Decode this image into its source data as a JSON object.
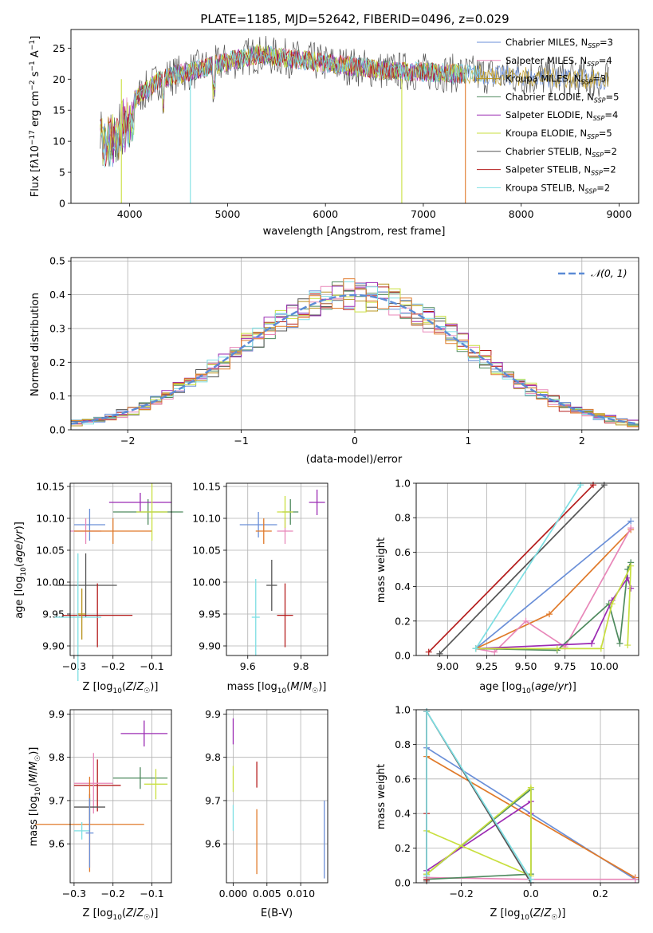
{
  "title": "PLATE=1185, MJD=52642, FIBERID=0496, z=0.029",
  "colors": [
    "#6a8fd8",
    "#e887b9",
    "#b8941e",
    "#4e8a5e",
    "#9b2bb3",
    "#c9df3f",
    "#555555",
    "#b51d1d",
    "#7ddfe3",
    "#e07a2a"
  ],
  "spectrum": {
    "xlabel": "wavelength [Angstrom, rest frame]",
    "ylabel": "Flux [f_λ10^-17 erg cm^-2 s^-1 A^-1]",
    "xlim": [
      3400,
      9200
    ],
    "ylim": [
      0,
      28
    ],
    "xticks": [
      4000,
      5000,
      6000,
      7000,
      8000,
      9000
    ],
    "yticks": [
      0,
      5,
      10,
      15,
      20,
      25
    ],
    "legend_placement": "upper right",
    "legend": [
      "Chabrier MILES, N_SSP=3",
      "Salpeter MILES, N_SSP=4",
      "Kroupa MILES, N_SSP=3",
      "Chabrier ELODIE, N_SSP=5",
      "Salpeter ELODIE, N_SSP=4",
      "Kroupa ELODIE, N_SSP=5",
      "Chabrier STELIB, N_SSP=2",
      "Salpeter STELIB, N_SSP=2",
      "Kroupa STELIB, N_SSP=2"
    ]
  },
  "hist": {
    "xlabel": "(data-model)/error",
    "ylabel": "Normed distribution",
    "xlim": [
      -2.5,
      2.5
    ],
    "ylim": [
      0,
      0.51
    ],
    "xticks": [
      -2,
      -1,
      0,
      1,
      2
    ],
    "yticks": [
      0.0,
      0.1,
      0.2,
      0.3,
      0.4,
      0.5
    ],
    "legend": "N(0,1)",
    "legend_placement": "upper right"
  },
  "age_vs_Z": {
    "xlabel": "Z [log10(Z/Z☉)]",
    "ylabel": "age  [log10(age/yr)]",
    "xlim": [
      -0.31,
      -0.05
    ],
    "ylim": [
      9.885,
      10.155
    ],
    "xticks": [
      -0.3,
      -0.2,
      -0.1
    ],
    "yticks": [
      9.9,
      9.95,
      10.0,
      10.05,
      10.1,
      10.15
    ],
    "points": [
      {
        "c": 0,
        "x": -0.26,
        "xerr": 0.04,
        "y": 10.09,
        "yerr": 0.025
      },
      {
        "c": 1,
        "x": -0.27,
        "xerr": 0.04,
        "y": 10.08,
        "yerr": 0.02
      },
      {
        "c": 9,
        "x": -0.2,
        "xerr": 0.1,
        "y": 10.08,
        "yerr": 0.02
      },
      {
        "c": 3,
        "x": -0.11,
        "xerr": 0.09,
        "y": 10.11,
        "yerr": 0.02
      },
      {
        "c": 4,
        "x": -0.13,
        "xerr": 0.08,
        "y": 10.125,
        "yerr": 0.015
      },
      {
        "c": 5,
        "x": -0.1,
        "xerr": 0.04,
        "y": 10.11,
        "yerr": 0.045
      },
      {
        "c": 6,
        "x": -0.27,
        "xerr": 0.08,
        "y": 9.995,
        "yerr": 0.05
      },
      {
        "c": 7,
        "x": -0.24,
        "xerr": 0.09,
        "y": 9.948,
        "yerr": 0.05
      },
      {
        "c": 8,
        "x": -0.29,
        "xerr": 0.06,
        "y": 9.945,
        "yerr": 0.1
      },
      {
        "c": 2,
        "x": -0.28,
        "xerr": 0.01,
        "y": 9.95,
        "yerr": 0.04
      }
    ]
  },
  "age_vs_mass": {
    "xlabel": "mass [log10(M/M☉)]",
    "xlim": [
      9.52,
      9.9
    ],
    "ylim": [
      9.885,
      10.155
    ],
    "xticks": [
      9.6,
      9.8
    ],
    "yticks": [
      9.9,
      9.95,
      10.0,
      10.05,
      10.1,
      10.15
    ],
    "points": [
      {
        "c": 0,
        "x": 9.64,
        "xerr": 0.07,
        "y": 10.09,
        "yerr": 0.02
      },
      {
        "c": 9,
        "x": 9.66,
        "xerr": 0.03,
        "y": 10.08,
        "yerr": 0.02
      },
      {
        "c": 1,
        "x": 9.74,
        "xerr": 0.03,
        "y": 10.08,
        "yerr": 0.02
      },
      {
        "c": 3,
        "x": 9.76,
        "xerr": 0.03,
        "y": 10.11,
        "yerr": 0.02
      },
      {
        "c": 5,
        "x": 9.74,
        "xerr": 0.03,
        "y": 10.11,
        "yerr": 0.025
      },
      {
        "c": 4,
        "x": 9.86,
        "xerr": 0.03,
        "y": 10.125,
        "yerr": 0.02
      },
      {
        "c": 6,
        "x": 9.69,
        "xerr": 0.02,
        "y": 9.995,
        "yerr": 0.04
      },
      {
        "c": 7,
        "x": 9.74,
        "xerr": 0.03,
        "y": 9.948,
        "yerr": 0.05
      },
      {
        "c": 8,
        "x": 9.63,
        "xerr": 0.015,
        "y": 9.945,
        "yerr": 0.06
      }
    ]
  },
  "weight_vs_age": {
    "xlabel": "age  [log10(age/yr)]",
    "ylabel": "mass weight",
    "xlim": [
      8.8,
      10.22
    ],
    "ylim": [
      0,
      1
    ],
    "xticks": [
      9.0,
      9.25,
      9.5,
      9.75,
      10.0
    ],
    "yticks": [
      0.0,
      0.2,
      0.4,
      0.6,
      0.8,
      1.0
    ],
    "lines": [
      {
        "c": 0,
        "x": [
          9.18,
          10.17
        ],
        "y": [
          0.04,
          0.78
        ]
      },
      {
        "c": 9,
        "x": [
          9.18,
          9.65,
          10.17
        ],
        "y": [
          0.04,
          0.24,
          0.73
        ]
      },
      {
        "c": 1,
        "x": [
          9.18,
          9.3,
          9.5,
          9.75,
          10.17
        ],
        "y": [
          0.04,
          0.02,
          0.2,
          0.05,
          0.74
        ]
      },
      {
        "c": 3,
        "x": [
          9.18,
          9.7,
          10.03,
          10.1,
          10.15,
          10.17
        ],
        "y": [
          0.04,
          0.03,
          0.3,
          0.07,
          0.5,
          0.54
        ]
      },
      {
        "c": 4,
        "x": [
          9.18,
          9.92,
          10.05,
          10.15,
          10.17
        ],
        "y": [
          0.04,
          0.07,
          0.32,
          0.45,
          0.39
        ]
      },
      {
        "c": 5,
        "x": [
          9.18,
          9.7,
          9.98,
          10.05,
          10.17,
          10.15
        ],
        "y": [
          0.04,
          0.04,
          0.04,
          0.3,
          0.52,
          0.06
        ]
      },
      {
        "c": 6,
        "x": [
          8.95,
          10.0
        ],
        "y": [
          0.01,
          0.99
        ]
      },
      {
        "c": 7,
        "x": [
          8.88,
          9.93
        ],
        "y": [
          0.02,
          0.99
        ]
      },
      {
        "c": 8,
        "x": [
          9.18,
          9.85
        ],
        "y": [
          0.04,
          0.99
        ]
      }
    ]
  },
  "mass_vs_Z": {
    "xlabel": "Z [log10(Z/Z☉)]",
    "ylabel": "mass [log10(M/M☉)]",
    "xlim": [
      -0.31,
      -0.05
    ],
    "ylim": [
      9.51,
      9.91
    ],
    "xticks": [
      -0.3,
      -0.2,
      -0.1
    ],
    "yticks": [
      9.6,
      9.7,
      9.8,
      9.9
    ],
    "points": [
      {
        "c": 4,
        "x": -0.12,
        "xerr": 0.06,
        "y": 9.855,
        "yerr": 0.03
      },
      {
        "c": 3,
        "x": -0.13,
        "xerr": 0.07,
        "y": 9.752,
        "yerr": 0.025
      },
      {
        "c": 5,
        "x": -0.09,
        "xerr": 0.03,
        "y": 9.738,
        "yerr": 0.035
      },
      {
        "c": 7,
        "x": -0.24,
        "xerr": 0.06,
        "y": 9.735,
        "yerr": 0.06
      },
      {
        "c": 1,
        "x": -0.25,
        "xerr": 0.05,
        "y": 9.74,
        "yerr": 0.07
      },
      {
        "c": 6,
        "x": -0.26,
        "xerr": 0.04,
        "y": 9.685,
        "yerr": 0.03
      },
      {
        "c": 9,
        "x": -0.26,
        "xerr": 0.14,
        "y": 9.645,
        "yerr": 0.11
      },
      {
        "c": 8,
        "x": -0.28,
        "xerr": 0.02,
        "y": 9.63,
        "yerr": 0.02
      },
      {
        "c": 0,
        "x": -0.26,
        "xerr": 0.01,
        "y": 9.625,
        "yerr": 0.08
      }
    ]
  },
  "mass_vs_ebv": {
    "xlabel": "E(B-V)",
    "xlim": [
      -0.001,
      0.014
    ],
    "ylim": [
      9.51,
      9.91
    ],
    "xticks": [
      0.0,
      0.005,
      0.01
    ],
    "ytick_labels_vals": [
      9.6,
      9.7,
      9.8,
      9.9
    ],
    "xtick_labels": [
      "0.000",
      "0.005",
      "0.010"
    ],
    "bars": [
      {
        "c": 4,
        "x": 0.0,
        "y0": 9.83,
        "y1": 9.89
      },
      {
        "c": 5,
        "x": 0.0,
        "y0": 9.72,
        "y1": 9.78
      },
      {
        "c": 8,
        "x": 0.0,
        "y0": 9.63,
        "y1": 9.69
      },
      {
        "c": 7,
        "x": 0.0035,
        "y0": 9.73,
        "y1": 9.79
      },
      {
        "c": 9,
        "x": 0.0035,
        "y0": 9.53,
        "y1": 9.68
      },
      {
        "c": 0,
        "x": 0.0135,
        "y0": 9.52,
        "y1": 9.7
      }
    ]
  },
  "weight_vs_Z": {
    "xlabel": "Z [log10(Z/Z☉)]",
    "ylabel": "mass weight",
    "xlim": [
      -0.33,
      0.31
    ],
    "ylim": [
      0,
      1
    ],
    "xticks": [
      -0.2,
      0.0,
      0.2
    ],
    "yticks": [
      0.0,
      0.2,
      0.4,
      0.6,
      0.8,
      1.0
    ],
    "lines": [
      {
        "c": 0,
        "x": [
          -0.3,
          0.3
        ],
        "y": [
          0.78,
          0.02
        ]
      },
      {
        "c": 9,
        "x": [
          -0.3,
          0.3
        ],
        "y": [
          0.73,
          0.03
        ]
      },
      {
        "c": 1,
        "x": [
          -0.3,
          0.0,
          0.3
        ],
        "y": [
          0.03,
          0.02,
          0.02
        ]
      },
      {
        "c": 3,
        "x": [
          -0.3,
          0.0,
          0.0,
          -0.3
        ],
        "y": [
          0.05,
          0.54,
          0.05,
          0.02
        ]
      },
      {
        "c": 4,
        "x": [
          -0.3,
          0.0,
          0.0
        ],
        "y": [
          0.07,
          0.47,
          0.4
        ]
      },
      {
        "c": 5,
        "x": [
          -0.3,
          0.0,
          0.0,
          -0.3
        ],
        "y": [
          0.05,
          0.55,
          0.04,
          0.3
        ]
      },
      {
        "c": 6,
        "x": [
          -0.3,
          -0.3,
          0.0
        ],
        "y": [
          0.01,
          0.99,
          0.0
        ]
      },
      {
        "c": 7,
        "x": [
          -0.3,
          -0.3,
          -0.3
        ],
        "y": [
          0.02,
          0.99,
          0.4
        ]
      },
      {
        "c": 8,
        "x": [
          -0.3,
          -0.3,
          0.0
        ],
        "y": [
          0.04,
          0.99,
          0.02
        ]
      }
    ]
  }
}
